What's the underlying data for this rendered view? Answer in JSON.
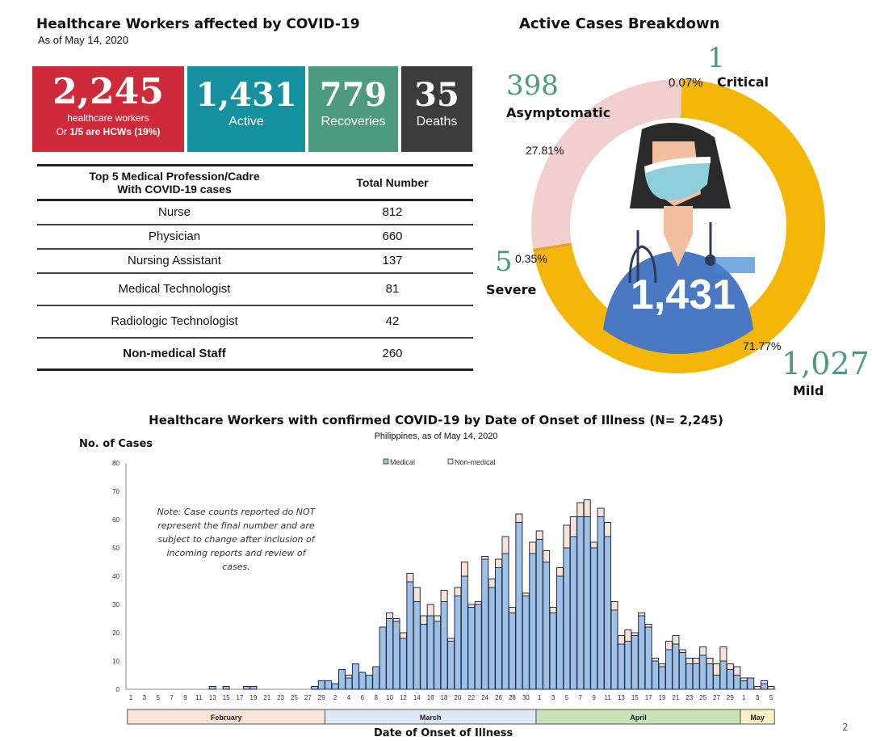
{
  "header": {
    "title": "Healthcare Workers affected by COVID-19",
    "subtitle": "As of May 14, 2020"
  },
  "stats": {
    "total": {
      "value": "2,245",
      "line1": "healthcare workers",
      "line2_prefix": "Or ",
      "line2_bold": "1/5 are HCWs (19%)",
      "color": "#cf2a3a"
    },
    "active": {
      "value": "1,431",
      "label": "Active",
      "color": "#15909e"
    },
    "recoveries": {
      "value": "779",
      "label": "Recoveries",
      "color": "#4e9a80"
    },
    "deaths": {
      "value": "35",
      "label": "Deaths",
      "color": "#3c3c3c"
    }
  },
  "profession_table": {
    "header_col1_line1": "Top 5 Medical Profession/Cadre",
    "header_col1_line2": "With COVID-19 cases",
    "header_col2": "Total Number",
    "rows": [
      {
        "name": "Nurse",
        "value": "812"
      },
      {
        "name": "Physician",
        "value": "660"
      },
      {
        "name": "Nursing Assistant",
        "value": "137"
      },
      {
        "name": "Medical Technologist",
        "value": "81"
      },
      {
        "name": "Radiologic Technologist",
        "value": "42"
      },
      {
        "name": "Non-medical Staff",
        "value": "260"
      }
    ]
  },
  "active_breakdown": {
    "title": "Active Cases Breakdown",
    "center_value": "1,431",
    "segments": [
      {
        "name": "Critical",
        "count": "1",
        "pct": "0.07%",
        "value": 1,
        "color": "#d08b2a"
      },
      {
        "name": "Mild",
        "count": "1,027",
        "pct": "71.77%",
        "value": 1027,
        "color": "#f5b60a"
      },
      {
        "name": "Severe",
        "count": "5",
        "pct": "0.35%",
        "value": 5,
        "color": "#e8a020"
      },
      {
        "name": "Asymptomatic",
        "count": "398",
        "pct": "27.81%",
        "value": 398,
        "color": "#f2cfcf"
      }
    ]
  },
  "chart_data": {
    "type": "bar",
    "stacked": true,
    "title": "Healthcare Workers with confirmed COVID-19 by Date of Onset of Illness (N= 2,245)",
    "subtitle": "Philippines, as of May 14, 2020",
    "xlabel": "Date of Onset of Illness",
    "ylabel": "No. of Cases",
    "ylim": [
      0,
      80
    ],
    "yticks": [
      0,
      10,
      20,
      30,
      40,
      50,
      60,
      70,
      80
    ],
    "legend": {
      "position": "top-center",
      "entries": [
        "Medical",
        "Non-medical"
      ]
    },
    "note": "Note: Case counts reported do NOT represent the final number and are subject to change after inclusion of incoming reports and review of cases.",
    "months": [
      {
        "name": "February",
        "days": 29,
        "color": "#fbe3d6"
      },
      {
        "name": "March",
        "days": 31,
        "color": "#dde9f7"
      },
      {
        "name": "April",
        "days": 30,
        "color": "#c6e2b6"
      },
      {
        "name": "May",
        "days": 5,
        "color": "#fdf0c6"
      }
    ],
    "x_tick_labels": [
      "1",
      "3",
      "5",
      "7",
      "9",
      "11",
      "13",
      "15",
      "17",
      "19",
      "21",
      "23",
      "25",
      "27",
      "29",
      "2",
      "4",
      "6",
      "8",
      "10",
      "12",
      "14",
      "16",
      "18",
      "20",
      "22",
      "24",
      "26",
      "28",
      "30",
      "1",
      "3",
      "5",
      "7",
      "9",
      "11",
      "13",
      "15",
      "17",
      "19",
      "21",
      "23",
      "25",
      "27",
      "29",
      "1",
      "3",
      "5"
    ],
    "series": [
      {
        "name": "Medical",
        "color": "#9fc1e6",
        "values": [
          0,
          0,
          0,
          0,
          0,
          0,
          0,
          0,
          0,
          0,
          0,
          0,
          1,
          0,
          1,
          0,
          0,
          1,
          1,
          0,
          0,
          0,
          0,
          0,
          0,
          0,
          0,
          1,
          3,
          3,
          2,
          7,
          4,
          9,
          6,
          5,
          8,
          22,
          25,
          24,
          18,
          38,
          31,
          23,
          26,
          24,
          31,
          17,
          33,
          40,
          29,
          30,
          46,
          36,
          43,
          48,
          27,
          59,
          33,
          48,
          53,
          45,
          27,
          40,
          50,
          54,
          61,
          61,
          50,
          61,
          54,
          28,
          16,
          17,
          19,
          26,
          22,
          10,
          8,
          14,
          16,
          13,
          9,
          9,
          12,
          9,
          5,
          10,
          7,
          5,
          3,
          4,
          0,
          2,
          0
        ]
      },
      {
        "name": "Non-medical",
        "color": "#fae3d4",
        "values": [
          0,
          0,
          0,
          0,
          0,
          0,
          0,
          0,
          0,
          0,
          0,
          0,
          0,
          0,
          0,
          0,
          0,
          0,
          0,
          0,
          0,
          0,
          0,
          0,
          0,
          0,
          0,
          0,
          0,
          0,
          0,
          0,
          1,
          0,
          0,
          0,
          0,
          0,
          2,
          1,
          2,
          3,
          5,
          3,
          4,
          2,
          4,
          1,
          3,
          5,
          1,
          1,
          1,
          3,
          3,
          6,
          2,
          3,
          1,
          4,
          3,
          4,
          2,
          3,
          8,
          7,
          5,
          6,
          2,
          3,
          5,
          3,
          3,
          4,
          1,
          1,
          1,
          1,
          1,
          3,
          3,
          1,
          2,
          2,
          3,
          2,
          4,
          5,
          2,
          3,
          1,
          0,
          1,
          1,
          1
        ]
      }
    ]
  },
  "page_number": "2"
}
